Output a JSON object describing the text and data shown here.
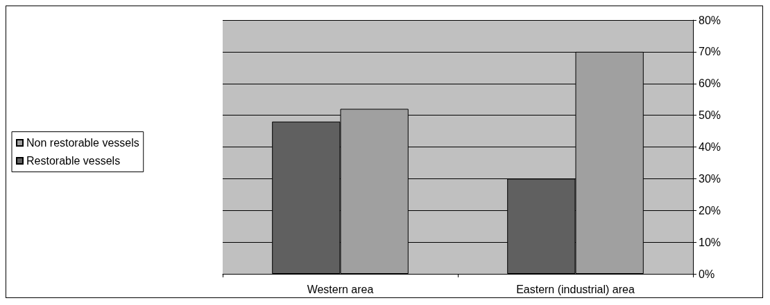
{
  "chart_data": {
    "type": "bar",
    "categories": [
      "Western area",
      "Eastern (industrial) area"
    ],
    "series": [
      {
        "name": "Restorable vessels",
        "color": "#606060",
        "values": [
          48,
          30
        ]
      },
      {
        "name": "Non restorable vessels",
        "color": "#a0a0a0",
        "values": [
          52,
          70
        ]
      }
    ],
    "ylim": [
      0,
      80
    ],
    "yticks": [
      {
        "value": 0,
        "label": "0%"
      },
      {
        "value": 10,
        "label": "10%"
      },
      {
        "value": 20,
        "label": "20%"
      },
      {
        "value": 30,
        "label": "30%"
      },
      {
        "value": 40,
        "label": "40%"
      },
      {
        "value": 50,
        "label": "50%"
      },
      {
        "value": 60,
        "label": "60%"
      },
      {
        "value": 70,
        "label": "70%"
      },
      {
        "value": 80,
        "label": "80%"
      }
    ],
    "grid": "y",
    "legend": "left"
  }
}
